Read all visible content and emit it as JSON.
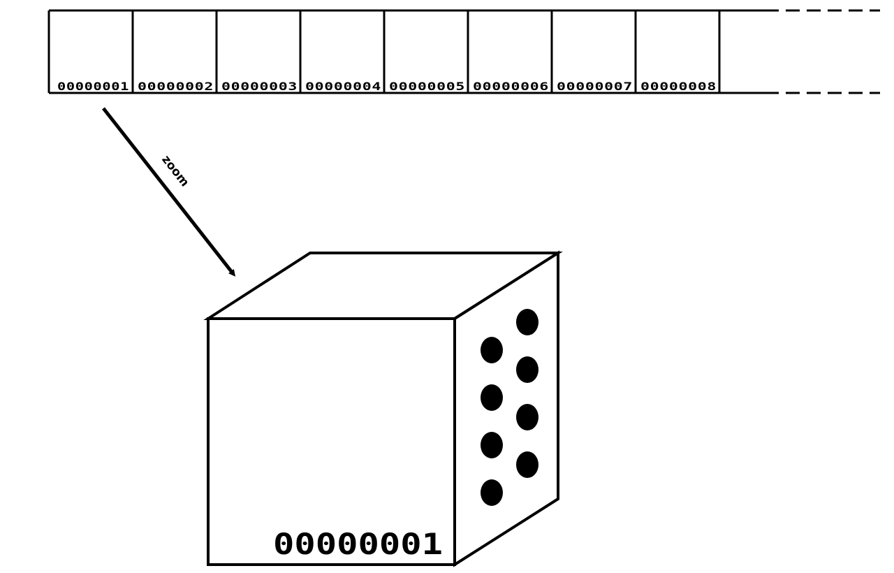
{
  "diagram": {
    "strip": {
      "cells": [
        {
          "label": "00000001"
        },
        {
          "label": "00000002"
        },
        {
          "label": "00000003"
        },
        {
          "label": "00000004"
        },
        {
          "label": "00000005"
        },
        {
          "label": "00000006"
        },
        {
          "label": "00000007"
        },
        {
          "label": "00000008"
        }
      ],
      "continuation": "dashed"
    },
    "zoom_arrow": {
      "label": "zoom"
    },
    "zoomed_block": {
      "label": "00000001",
      "dot_count": 8
    },
    "colors": {
      "stroke": "#000000",
      "fill": "#ffffff",
      "dot": "#000000"
    }
  }
}
